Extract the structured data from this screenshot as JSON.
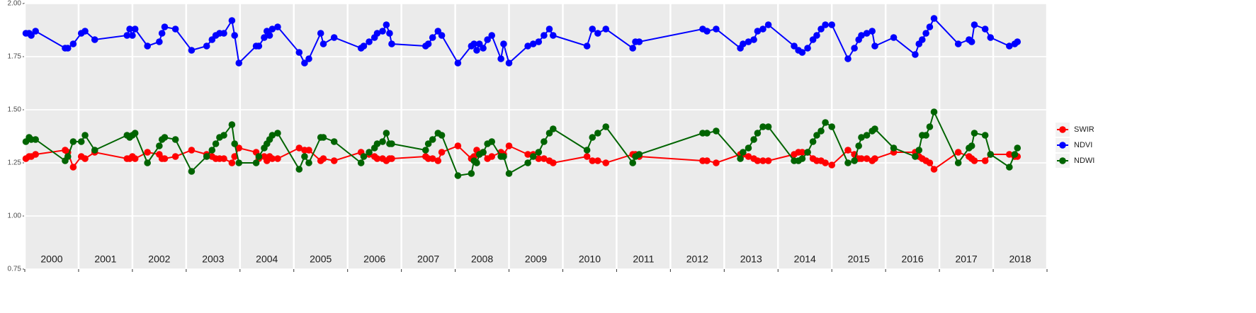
{
  "chart_data": {
    "type": "line",
    "xlim": [
      2000,
      2019
    ],
    "xticks": [
      2000,
      2001,
      2002,
      2003,
      2004,
      2005,
      2006,
      2007,
      2008,
      2009,
      2010,
      2011,
      2012,
      2013,
      2014,
      2015,
      2016,
      2017,
      2018,
      2019
    ],
    "year_labels": [
      "2000",
      "2001",
      "2002",
      "2003",
      "2004",
      "2005",
      "2006",
      "2007",
      "2008",
      "2009",
      "2010",
      "2011",
      "2012",
      "2013",
      "2014",
      "2015",
      "2016",
      "2017",
      "2018"
    ],
    "ylim": [
      0.75,
      2.0
    ],
    "yticks": [
      {
        "value": 0.75,
        "label": "0.75"
      },
      {
        "value": 1.0,
        "label": "1.00"
      },
      {
        "value": 1.25,
        "label": "1.25"
      },
      {
        "value": 1.5,
        "label": "1.50"
      },
      {
        "value": 1.75,
        "label": "1.75"
      },
      {
        "value": 2.0,
        "label": "2.00"
      }
    ],
    "grid": true,
    "legend": "right",
    "x": [
      2000.02,
      2000.08,
      2000.12,
      2000.2,
      2000.75,
      2000.8,
      2000.9,
      2001.05,
      2001.12,
      2001.3,
      2001.9,
      2001.95,
      2002.0,
      2002.05,
      2002.28,
      2002.5,
      2002.55,
      2002.6,
      2002.8,
      2003.1,
      2003.38,
      2003.48,
      2003.55,
      2003.62,
      2003.7,
      2003.85,
      2003.9,
      2003.98,
      2004.3,
      2004.35,
      2004.45,
      2004.5,
      2004.55,
      2004.6,
      2004.7,
      2005.1,
      2005.2,
      2005.28,
      2005.5,
      2005.55,
      2005.75,
      2006.25,
      2006.3,
      2006.4,
      2006.5,
      2006.55,
      2006.65,
      2006.72,
      2006.78,
      2006.82,
      2007.45,
      2007.5,
      2007.58,
      2007.68,
      2007.75,
      2008.05,
      2008.3,
      2008.35,
      2008.4,
      2008.45,
      2008.52,
      2008.6,
      2008.68,
      2008.85,
      2008.9,
      2009.0,
      2009.35,
      2009.45,
      2009.55,
      2009.65,
      2009.75,
      2009.82,
      2010.45,
      2010.55,
      2010.65,
      2010.8,
      2011.3,
      2011.35,
      2011.42,
      2012.6,
      2012.68,
      2012.85,
      2013.3,
      2013.35,
      2013.45,
      2013.55,
      2013.62,
      2013.72,
      2013.82,
      2014.3,
      2014.38,
      2014.45,
      2014.55,
      2014.65,
      2014.72,
      2014.8,
      2014.88,
      2015.0,
      2015.3,
      2015.42,
      2015.5,
      2015.55,
      2015.65,
      2015.75,
      2015.8,
      2016.15,
      2016.55,
      2016.62,
      2016.68,
      2016.75,
      2016.82,
      2016.9,
      2017.35,
      2017.55,
      2017.6,
      2017.65,
      2017.85,
      2017.95,
      2018.3,
      2018.4,
      2018.45
    ],
    "series": [
      {
        "name": "SWIR",
        "color": "#ff0000",
        "values": [
          1.27,
          1.28,
          1.28,
          1.29,
          1.31,
          1.3,
          1.23,
          1.28,
          1.27,
          1.3,
          1.27,
          1.27,
          1.28,
          1.27,
          1.3,
          1.29,
          1.27,
          1.27,
          1.28,
          1.31,
          1.29,
          1.28,
          1.27,
          1.27,
          1.27,
          1.25,
          1.28,
          1.32,
          1.3,
          1.27,
          1.28,
          1.26,
          1.28,
          1.27,
          1.27,
          1.32,
          1.31,
          1.31,
          1.26,
          1.27,
          1.26,
          1.3,
          1.28,
          1.29,
          1.28,
          1.27,
          1.27,
          1.26,
          1.27,
          1.27,
          1.28,
          1.27,
          1.27,
          1.26,
          1.3,
          1.33,
          1.27,
          1.28,
          1.31,
          1.29,
          1.3,
          1.27,
          1.28,
          1.3,
          1.29,
          1.33,
          1.29,
          1.29,
          1.27,
          1.27,
          1.26,
          1.25,
          1.28,
          1.26,
          1.26,
          1.25,
          1.29,
          1.29,
          1.28,
          1.26,
          1.26,
          1.25,
          1.29,
          1.29,
          1.28,
          1.27,
          1.26,
          1.26,
          1.26,
          1.29,
          1.3,
          1.3,
          1.3,
          1.27,
          1.26,
          1.26,
          1.25,
          1.24,
          1.31,
          1.29,
          1.27,
          1.27,
          1.27,
          1.26,
          1.27,
          1.3,
          1.3,
          1.28,
          1.27,
          1.26,
          1.25,
          1.22,
          1.3,
          1.28,
          1.27,
          1.26,
          1.26,
          1.29,
          1.29,
          1.28,
          1.28
        ]
      },
      {
        "name": "NDVI",
        "color": "#0000ff",
        "values": [
          1.86,
          1.86,
          1.85,
          1.87,
          1.79,
          1.79,
          1.81,
          1.86,
          1.87,
          1.83,
          1.85,
          1.88,
          1.85,
          1.88,
          1.8,
          1.82,
          1.86,
          1.89,
          1.88,
          1.78,
          1.8,
          1.83,
          1.85,
          1.86,
          1.86,
          1.92,
          1.85,
          1.72,
          1.8,
          1.8,
          1.84,
          1.87,
          1.85,
          1.88,
          1.89,
          1.77,
          1.72,
          1.74,
          1.86,
          1.81,
          1.84,
          1.79,
          1.8,
          1.82,
          1.84,
          1.86,
          1.87,
          1.9,
          1.86,
          1.81,
          1.8,
          1.81,
          1.84,
          1.87,
          1.85,
          1.72,
          1.8,
          1.81,
          1.78,
          1.81,
          1.79,
          1.83,
          1.85,
          1.74,
          1.81,
          1.72,
          1.8,
          1.81,
          1.82,
          1.85,
          1.88,
          1.85,
          1.8,
          1.88,
          1.86,
          1.88,
          1.79,
          1.82,
          1.82,
          1.88,
          1.87,
          1.88,
          1.79,
          1.81,
          1.82,
          1.83,
          1.87,
          1.88,
          1.9,
          1.8,
          1.78,
          1.77,
          1.79,
          1.83,
          1.85,
          1.88,
          1.9,
          1.9,
          1.74,
          1.79,
          1.83,
          1.85,
          1.86,
          1.87,
          1.8,
          1.84,
          1.76,
          1.81,
          1.83,
          1.86,
          1.89,
          1.93,
          1.81,
          1.83,
          1.82,
          1.9,
          1.88,
          1.84,
          1.8,
          1.81,
          1.82
        ]
      },
      {
        "name": "NDWI",
        "color": "#006400",
        "values": [
          1.35,
          1.37,
          1.36,
          1.36,
          1.26,
          1.28,
          1.35,
          1.35,
          1.38,
          1.31,
          1.38,
          1.37,
          1.38,
          1.39,
          1.25,
          1.33,
          1.36,
          1.37,
          1.36,
          1.21,
          1.28,
          1.31,
          1.34,
          1.37,
          1.38,
          1.43,
          1.34,
          1.25,
          1.25,
          1.28,
          1.32,
          1.34,
          1.36,
          1.38,
          1.39,
          1.22,
          1.28,
          1.25,
          1.37,
          1.37,
          1.35,
          1.25,
          1.28,
          1.3,
          1.32,
          1.34,
          1.35,
          1.39,
          1.34,
          1.34,
          1.31,
          1.34,
          1.36,
          1.39,
          1.38,
          1.19,
          1.2,
          1.26,
          1.25,
          1.29,
          1.3,
          1.34,
          1.35,
          1.28,
          1.28,
          1.2,
          1.25,
          1.28,
          1.3,
          1.35,
          1.39,
          1.41,
          1.31,
          1.37,
          1.39,
          1.42,
          1.25,
          1.28,
          1.29,
          1.39,
          1.39,
          1.4,
          1.27,
          1.3,
          1.32,
          1.36,
          1.39,
          1.42,
          1.42,
          1.26,
          1.26,
          1.27,
          1.3,
          1.35,
          1.38,
          1.4,
          1.44,
          1.42,
          1.25,
          1.26,
          1.33,
          1.37,
          1.38,
          1.4,
          1.41,
          1.32,
          1.28,
          1.31,
          1.38,
          1.38,
          1.42,
          1.49,
          1.25,
          1.32,
          1.33,
          1.39,
          1.38,
          1.29,
          1.23,
          1.29,
          1.32
        ]
      }
    ]
  }
}
